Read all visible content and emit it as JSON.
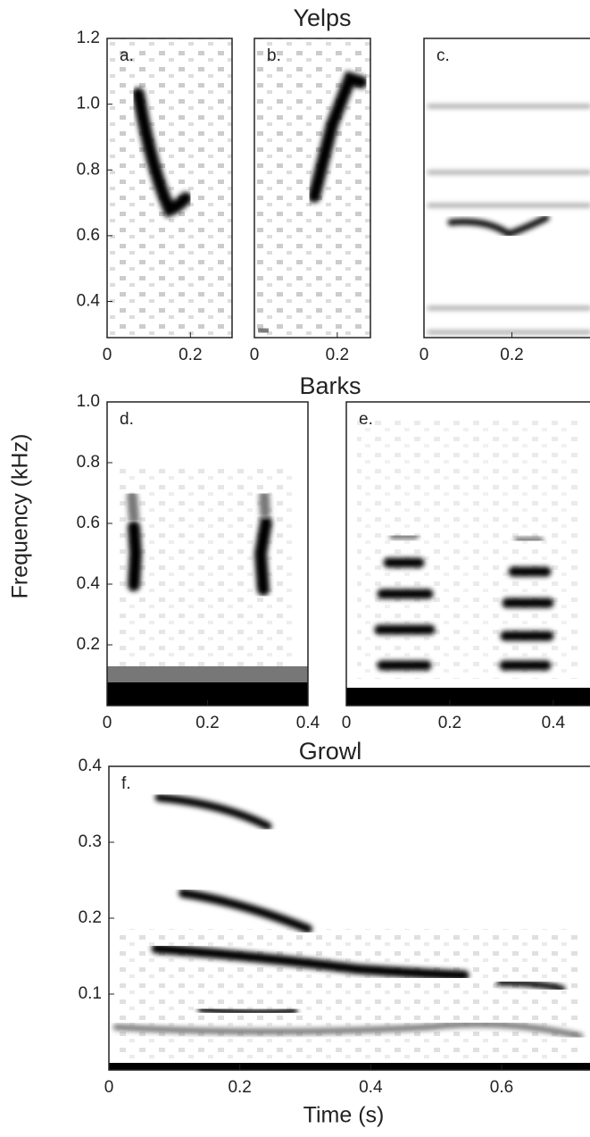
{
  "figure": {
    "section_titles": [
      "Yelps",
      "Barks",
      "Growl"
    ],
    "y_label": "Frequency (kHz)",
    "x_label": "Time (s)"
  },
  "chart_data": [
    {
      "type": "spectrogram",
      "panel": "a.",
      "xlim": [
        0,
        0.3
      ],
      "xticks": [
        0,
        0.2
      ],
      "ylim": [
        0.29,
        1.2
      ],
      "yticks": [
        0.4,
        0.6,
        0.8,
        {
          "value": 1,
          "label": "1.0"
        },
        1.2
      ]
    },
    {
      "type": "spectrogram",
      "panel": "b.",
      "xlim": [
        0,
        0.28
      ],
      "xticks": [
        0,
        0.2
      ],
      "ylim": [
        0.29,
        1.2
      ]
    },
    {
      "type": "spectrogram",
      "panel": "c.",
      "xlim": [
        0,
        0.4
      ],
      "xticks": [
        0,
        0.2
      ],
      "ylim": [
        0.29,
        1.2
      ]
    },
    {
      "type": "spectrogram",
      "panel": "d.",
      "xlim": [
        0,
        0.4
      ],
      "xticks": [
        0,
        0.2,
        0.4
      ],
      "ylim": [
        0,
        1
      ],
      "yticks": [
        0.2,
        0.4,
        0.6,
        0.8,
        {
          "value": 1,
          "label": "1.0"
        }
      ]
    },
    {
      "type": "spectrogram",
      "panel": "e.",
      "xlim": [
        0,
        0.49
      ],
      "xticks": [
        0,
        0.2,
        0.4
      ],
      "ylim": [
        0,
        1
      ]
    },
    {
      "type": "spectrogram",
      "panel": "f.",
      "xlim": [
        0,
        0.75
      ],
      "xticks": [
        0,
        0.2,
        0.4,
        0.6
      ],
      "ylim": [
        0,
        0.4
      ],
      "yticks": [
        0.1,
        0.2,
        0.3,
        0.4
      ]
    }
  ]
}
